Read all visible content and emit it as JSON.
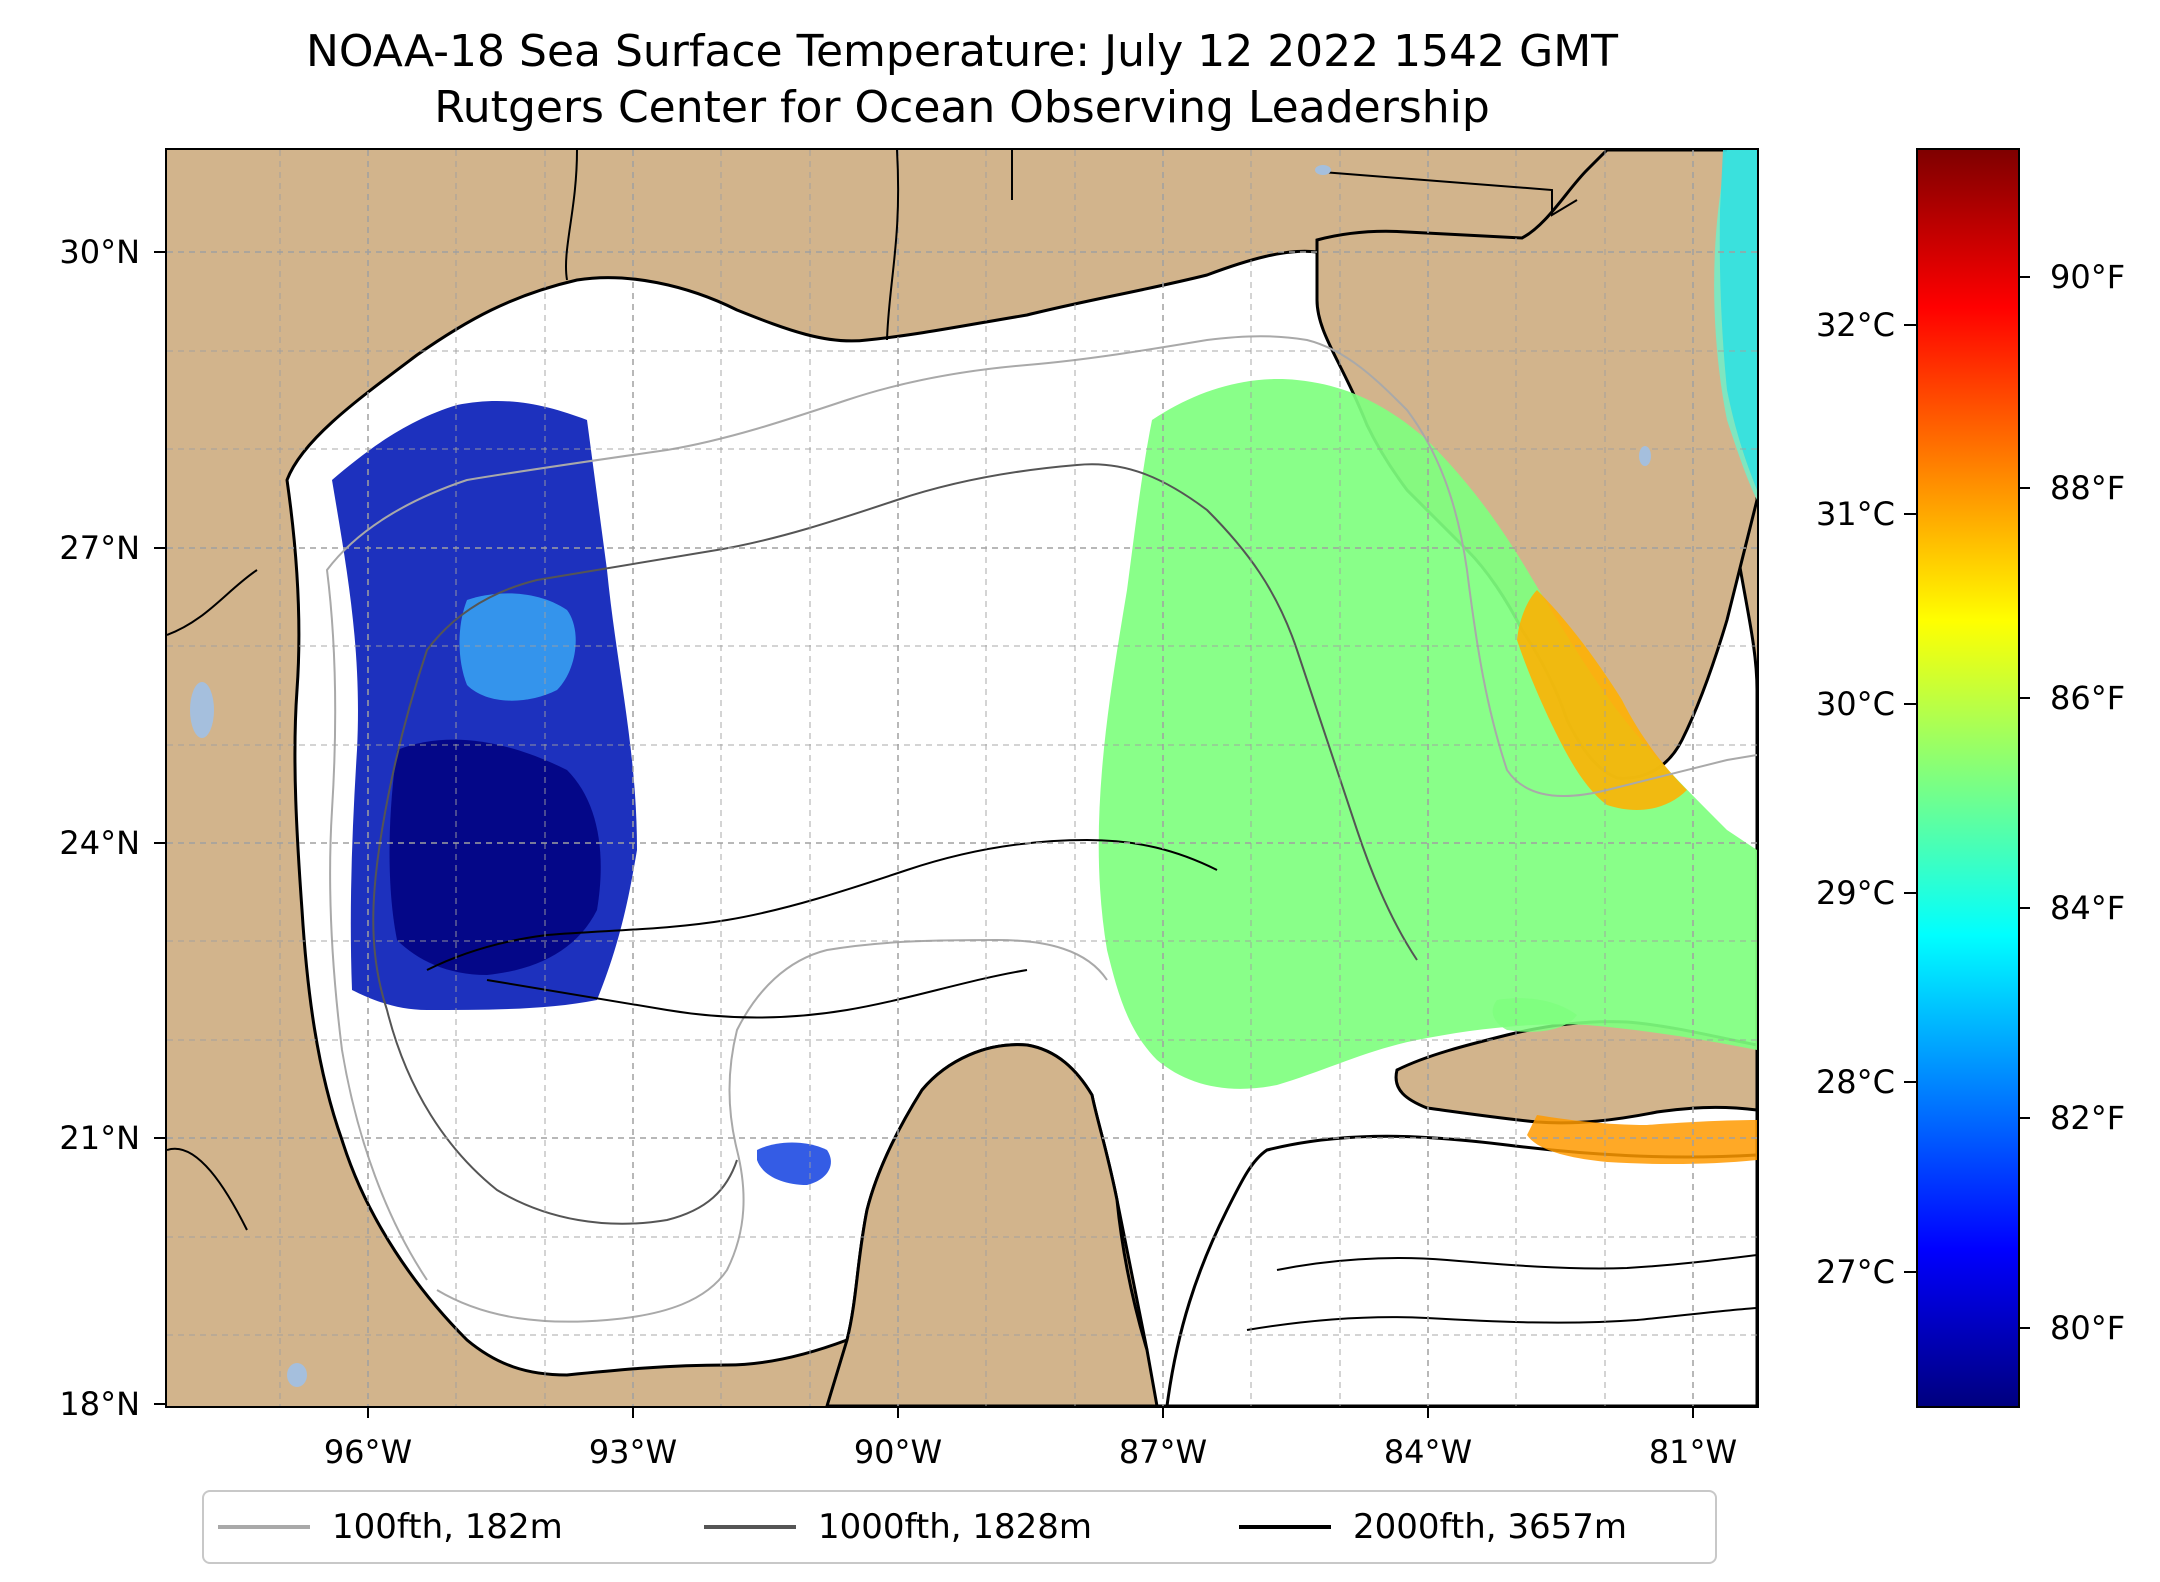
{
  "title": {
    "line1": "NOAA-18 Sea Surface Temperature: July 12 2022 1542 GMT",
    "line2": "Rutgers Center for Ocean Observing Leadership"
  },
  "map": {
    "region": "Gulf of Mexico",
    "colors": {
      "land": "#d2b48c",
      "water_no_data": "#ffffff",
      "lakes": "#a5bfdd",
      "coastline": "#000000",
      "gridline": "#a0a0a0"
    },
    "gridlines": true,
    "lat_ticks": [
      {
        "label": "30°N"
      },
      {
        "label": "27°N"
      },
      {
        "label": "24°N"
      },
      {
        "label": "21°N"
      },
      {
        "label": "18°N"
      }
    ],
    "lon_ticks": [
      {
        "label": "96°W"
      },
      {
        "label": "93°W"
      },
      {
        "label": "90°W"
      },
      {
        "label": "87°W"
      },
      {
        "label": "84°W"
      },
      {
        "label": "81°W"
      }
    ]
  },
  "colorbar": {
    "colormap": "jet",
    "colors": [
      "#00007f",
      "#0000ff",
      "#007fff",
      "#00ffff",
      "#7fff7f",
      "#ffff00",
      "#ff7f00",
      "#ff0000",
      "#7f0000"
    ],
    "celsius_ticks": [
      {
        "label": "32°C"
      },
      {
        "label": "31°C"
      },
      {
        "label": "30°C"
      },
      {
        "label": "29°C"
      },
      {
        "label": "28°C"
      },
      {
        "label": "27°C"
      }
    ],
    "fahrenheit_ticks": [
      {
        "label": "90°F"
      },
      {
        "label": "88°F"
      },
      {
        "label": "86°F"
      },
      {
        "label": "84°F"
      },
      {
        "label": "82°F"
      },
      {
        "label": "80°F"
      }
    ]
  },
  "legend": {
    "placement": "bottom-center",
    "items": [
      {
        "label": "100fth, 182m",
        "color": "#a9a9a9"
      },
      {
        "label": "1000fth, 1828m",
        "color": "#555555"
      },
      {
        "label": "2000fth, 3657m",
        "color": "#000000"
      }
    ]
  }
}
